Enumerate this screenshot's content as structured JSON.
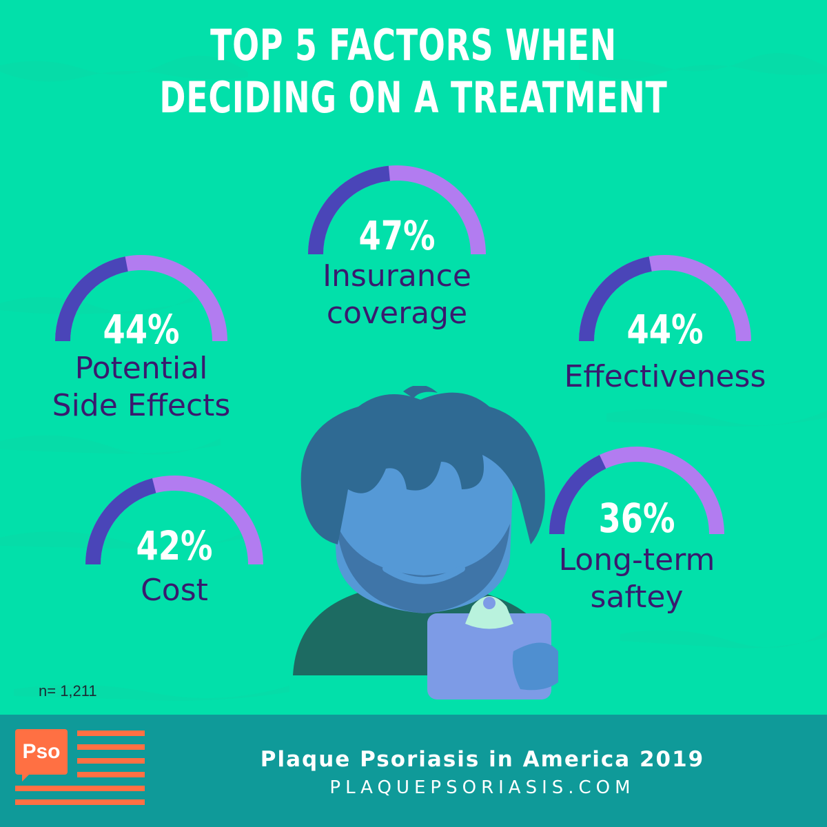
{
  "title": {
    "line1": "TOP 5 FACTORS WHEN",
    "line2": "DECIDING ON A TREATMENT"
  },
  "chart_data": {
    "type": "gauge",
    "title": "TOP 5 FACTORS WHEN DECIDING ON A TREATMENT",
    "unit": "%",
    "items": [
      {
        "id": "insurance",
        "value": 47,
        "value_label": "47%",
        "label_lines": [
          "Insurance",
          "coverage"
        ]
      },
      {
        "id": "side-effects",
        "value": 44,
        "value_label": "44%",
        "label_lines": [
          "Potential",
          "Side Effects"
        ]
      },
      {
        "id": "effectiveness",
        "value": 44,
        "value_label": "44%",
        "label_lines": [
          "Effectiveness"
        ]
      },
      {
        "id": "cost",
        "value": 42,
        "value_label": "42%",
        "label_lines": [
          "Cost"
        ]
      },
      {
        "id": "long-term",
        "value": 36,
        "value_label": "36%",
        "label_lines": [
          "Long-term",
          "saftey"
        ]
      }
    ]
  },
  "sample_size": "n= 1,211",
  "footer": {
    "logo_text": "Pso",
    "title": "Plaque Psoriasis in America 2019",
    "url": "PLAQUEPSORIASIS.COM"
  },
  "colors": {
    "background": "#02e0aa",
    "gauge_fill": "#4a45b8",
    "gauge_track": "#b27cf0",
    "label_text": "#3a1a6e",
    "footer_bg": "#0f9a99",
    "logo_accent": "#ff7043",
    "figure_skin": "#5599d6",
    "figure_hair": "#2f6a93",
    "figure_shirt": "#1d6b62",
    "clipboard": "#7d9be6",
    "clip": "#b9f2dd"
  },
  "illustration": {
    "icon": "person-with-clipboard-icon"
  }
}
